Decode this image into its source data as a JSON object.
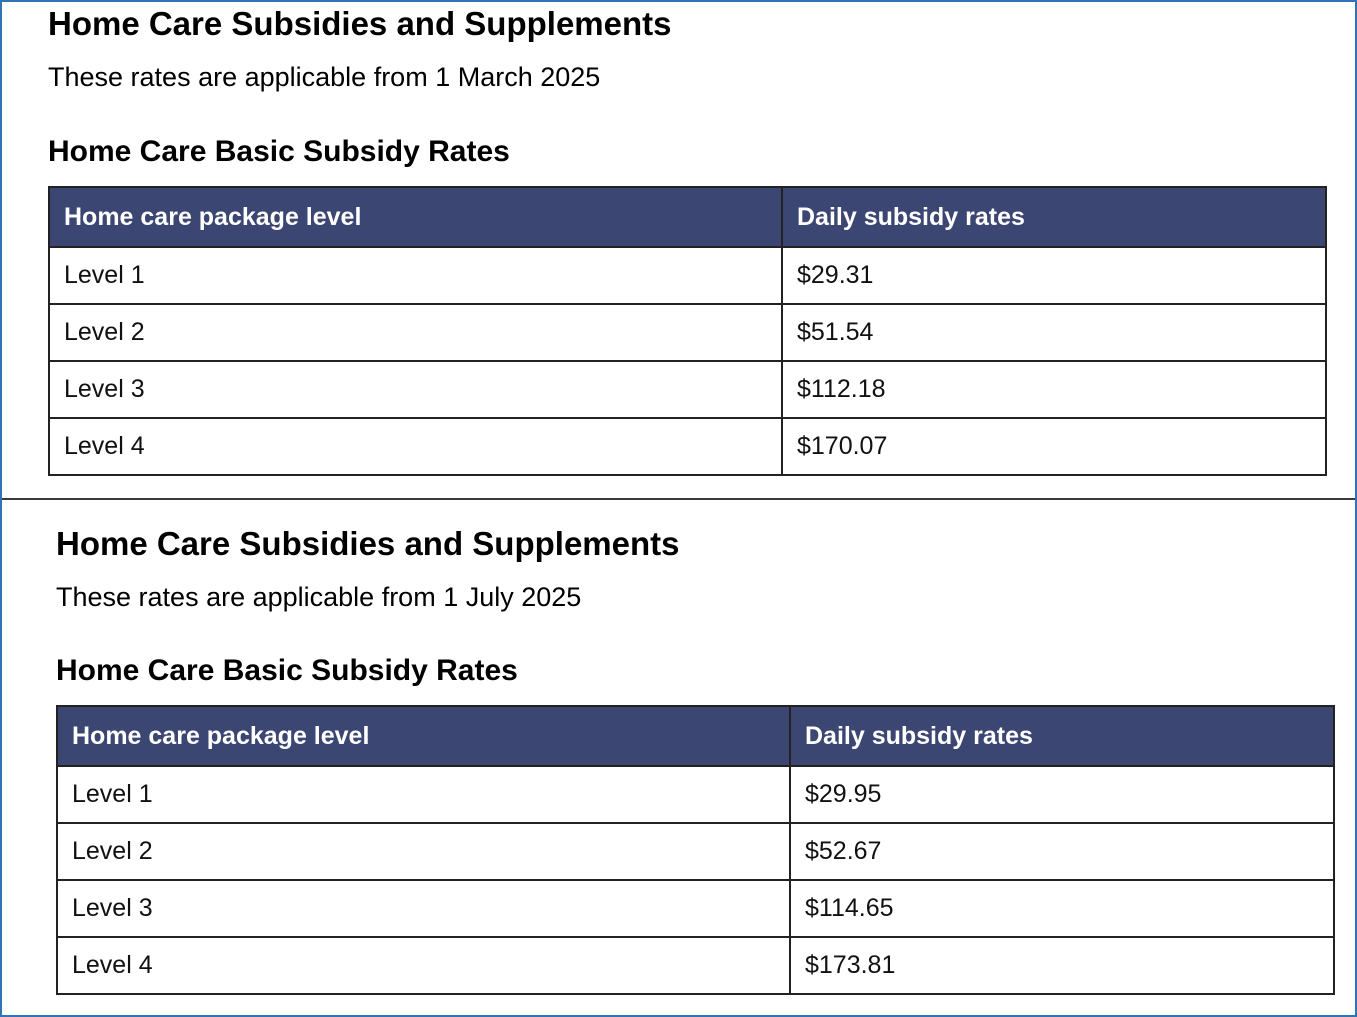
{
  "sections": [
    {
      "title": "Home Care Subsidies and Supplements",
      "subtitle": "These rates are applicable from 1 March 2025",
      "table_title": "Home Care Basic Subsidy Rates",
      "columns": [
        "Home care package level",
        "Daily subsidy rates"
      ],
      "rows": [
        [
          "Level 1",
          "$29.31"
        ],
        [
          "Level 2",
          "$51.54"
        ],
        [
          "Level 3",
          "$112.18"
        ],
        [
          "Level 4",
          "$170.07"
        ]
      ]
    },
    {
      "title": "Home Care Subsidies and Supplements",
      "subtitle": "These rates are applicable from 1 July 2025",
      "table_title": "Home Care Basic Subsidy Rates",
      "columns": [
        "Home care package level",
        "Daily subsidy rates"
      ],
      "rows": [
        [
          "Level 1",
          "$29.95"
        ],
        [
          "Level 2",
          "$52.67"
        ],
        [
          "Level 3",
          "$114.65"
        ],
        [
          "Level 4",
          "$173.81"
        ]
      ]
    }
  ],
  "colors": {
    "header_background": "#3c4672",
    "header_text": "#ffffff",
    "frame_border": "#2f74b5"
  }
}
